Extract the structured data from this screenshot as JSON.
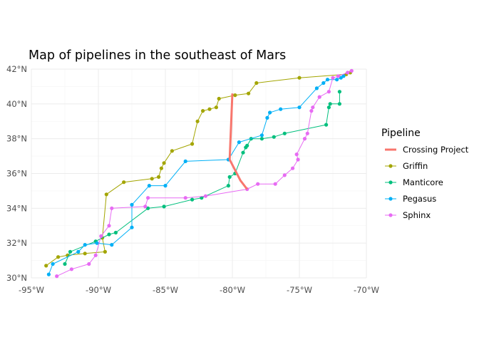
{
  "chart_data": {
    "type": "line",
    "title": "Map of pipelines in the southeast of Mars",
    "xlabel": "",
    "ylabel": "",
    "xlim": [
      -95,
      -70
    ],
    "ylim": [
      30,
      42
    ],
    "x_ticks": [
      -95,
      -90,
      -85,
      -80,
      -75,
      -70
    ],
    "x_tick_labels": [
      "-95°W",
      "-90°W",
      "-85°W",
      "-80°W",
      "-75°W",
      "-70°W"
    ],
    "y_ticks": [
      30,
      32,
      34,
      36,
      38,
      40,
      42
    ],
    "y_tick_labels": [
      "30°N",
      "32°N",
      "34°N",
      "36°N",
      "38°N",
      "40°N",
      "42°N"
    ],
    "grid": true,
    "legend": {
      "title": "Pipeline",
      "position": "right"
    },
    "series": [
      {
        "name": "Crossing Project",
        "color": "#F8766D",
        "markers": false,
        "points": [
          [
            -80.0,
            40.6
          ],
          [
            -80.2,
            36.8
          ],
          [
            -79.4,
            35.6
          ],
          [
            -78.9,
            35.1
          ]
        ]
      },
      {
        "name": "Griffin",
        "color": "#A3A500",
        "markers": true,
        "points": [
          [
            -93.9,
            30.7
          ],
          [
            -93.0,
            31.2
          ],
          [
            -92.3,
            31.3
          ],
          [
            -91.0,
            31.4
          ],
          [
            -89.5,
            31.5
          ],
          [
            -89.7,
            32.3
          ],
          [
            -89.4,
            34.8
          ],
          [
            -88.1,
            35.5
          ],
          [
            -86.0,
            35.7
          ],
          [
            -85.5,
            35.8
          ],
          [
            -85.3,
            36.3
          ],
          [
            -85.1,
            36.6
          ],
          [
            -84.5,
            37.3
          ],
          [
            -83.0,
            37.7
          ],
          [
            -82.6,
            39.0
          ],
          [
            -82.2,
            39.6
          ],
          [
            -81.7,
            39.7
          ],
          [
            -81.2,
            39.8
          ],
          [
            -81.0,
            40.3
          ],
          [
            -79.8,
            40.5
          ],
          [
            -78.8,
            40.6
          ],
          [
            -78.2,
            41.2
          ],
          [
            -75.0,
            41.5
          ],
          [
            -71.5,
            41.7
          ],
          [
            -71.2,
            41.8
          ]
        ]
      },
      {
        "name": "Manticore",
        "color": "#00BF7D",
        "markers": true,
        "points": [
          [
            -92.5,
            30.8
          ],
          [
            -92.1,
            31.5
          ],
          [
            -90.2,
            32.1
          ],
          [
            -89.2,
            32.5
          ],
          [
            -88.7,
            32.6
          ],
          [
            -86.3,
            34.0
          ],
          [
            -85.1,
            34.1
          ],
          [
            -83.0,
            34.5
          ],
          [
            -82.3,
            34.6
          ],
          [
            -80.3,
            35.3
          ],
          [
            -80.2,
            35.8
          ],
          [
            -79.8,
            36.0
          ],
          [
            -79.2,
            37.2
          ],
          [
            -79.0,
            37.5
          ],
          [
            -78.9,
            37.6
          ],
          [
            -78.6,
            38.0
          ],
          [
            -77.8,
            38.0
          ],
          [
            -76.9,
            38.1
          ],
          [
            -76.1,
            38.3
          ],
          [
            -73.0,
            38.8
          ],
          [
            -72.8,
            39.8
          ],
          [
            -72.7,
            40.0
          ],
          [
            -72.0,
            40.0
          ],
          [
            -72.0,
            40.7
          ]
        ]
      },
      {
        "name": "Pegasus",
        "color": "#00B0F6",
        "markers": true,
        "points": [
          [
            -93.7,
            30.2
          ],
          [
            -93.4,
            30.8
          ],
          [
            -91.5,
            31.5
          ],
          [
            -91.0,
            31.9
          ],
          [
            -90.1,
            32.0
          ],
          [
            -89.0,
            31.9
          ],
          [
            -87.5,
            32.9
          ],
          [
            -87.5,
            34.2
          ],
          [
            -86.2,
            35.3
          ],
          [
            -85.0,
            35.3
          ],
          [
            -83.5,
            36.7
          ],
          [
            -80.3,
            36.8
          ],
          [
            -79.5,
            37.8
          ],
          [
            -77.8,
            38.2
          ],
          [
            -77.4,
            39.2
          ],
          [
            -77.2,
            39.5
          ],
          [
            -76.4,
            39.7
          ],
          [
            -75.0,
            39.8
          ],
          [
            -73.7,
            40.9
          ],
          [
            -73.2,
            41.2
          ],
          [
            -72.9,
            41.4
          ],
          [
            -72.2,
            41.4
          ],
          [
            -71.9,
            41.5
          ],
          [
            -71.7,
            41.6
          ]
        ]
      },
      {
        "name": "Sphinx",
        "color": "#E76BF3",
        "markers": true,
        "points": [
          [
            -93.1,
            30.1
          ],
          [
            -92.0,
            30.5
          ],
          [
            -90.7,
            30.8
          ],
          [
            -90.2,
            31.3
          ],
          [
            -89.8,
            32.4
          ],
          [
            -89.2,
            33.0
          ],
          [
            -89.0,
            34.0
          ],
          [
            -86.5,
            34.1
          ],
          [
            -86.3,
            34.6
          ],
          [
            -83.5,
            34.6
          ],
          [
            -82.0,
            34.7
          ],
          [
            -78.9,
            35.1
          ],
          [
            -78.1,
            35.4
          ],
          [
            -76.8,
            35.4
          ],
          [
            -76.1,
            35.9
          ],
          [
            -75.5,
            36.3
          ],
          [
            -75.1,
            36.8
          ],
          [
            -75.2,
            37.1
          ],
          [
            -74.6,
            38.0
          ],
          [
            -74.4,
            38.3
          ],
          [
            -74.1,
            39.6
          ],
          [
            -74.0,
            39.8
          ],
          [
            -73.5,
            40.4
          ],
          [
            -72.8,
            40.7
          ],
          [
            -72.5,
            41.5
          ],
          [
            -72.1,
            41.6
          ],
          [
            -71.4,
            41.8
          ],
          [
            -71.1,
            41.9
          ]
        ]
      }
    ]
  }
}
